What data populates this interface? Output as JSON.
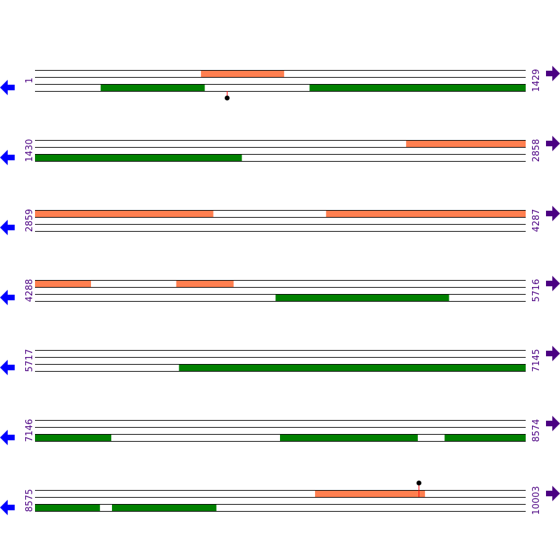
{
  "colors": {
    "forward_feature": "#ff7f50",
    "reverse_feature": "#008000",
    "label": "#4b0082",
    "left_arrow": "#0000ff",
    "right_arrow": "#4b0082",
    "marker_stem": "#ff0000",
    "marker_head": "#000000"
  },
  "icons": {
    "left": "arrow-left-icon",
    "right": "arrow-right-icon"
  },
  "rows": [
    {
      "start": "1",
      "end": "1429",
      "forward": [
        [
          484,
          726
        ]
      ],
      "reverse": [
        [
          192,
          495
        ],
        [
          800,
          1429
        ]
      ],
      "markers": [
        {
          "pos": 560,
          "side": "below"
        }
      ]
    },
    {
      "start": "1430",
      "end": "2858",
      "forward": [
        [
          2510,
          2858
        ]
      ],
      "reverse": [
        [
          1430,
          2032
        ]
      ],
      "markers": []
    },
    {
      "start": "2859",
      "end": "4287",
      "forward": [
        [
          2859,
          3378
        ],
        [
          3706,
          4287
        ]
      ],
      "reverse": [],
      "markers": []
    },
    {
      "start": "4288",
      "end": "5716",
      "forward": [
        [
          4288,
          4451
        ],
        [
          4699,
          4866
        ]
      ],
      "reverse": [
        [
          4988,
          5493
        ]
      ],
      "markers": []
    },
    {
      "start": "5717",
      "end": "7145",
      "forward": [],
      "reverse": [
        [
          6136,
          7145
        ]
      ],
      "markers": []
    },
    {
      "start": "7146",
      "end": "8574",
      "forward": [],
      "reverse": [
        [
          7146,
          7368
        ],
        [
          7859,
          8260
        ],
        [
          8338,
          8574
        ]
      ],
      "markers": []
    },
    {
      "start": "8575",
      "end": "10003",
      "forward": [
        [
          9390,
          9710
        ]
      ],
      "reverse": [
        [
          8575,
          8764
        ],
        [
          8799,
          9103
        ]
      ],
      "markers": [
        {
          "pos": 9692,
          "side": "above"
        }
      ]
    }
  ]
}
